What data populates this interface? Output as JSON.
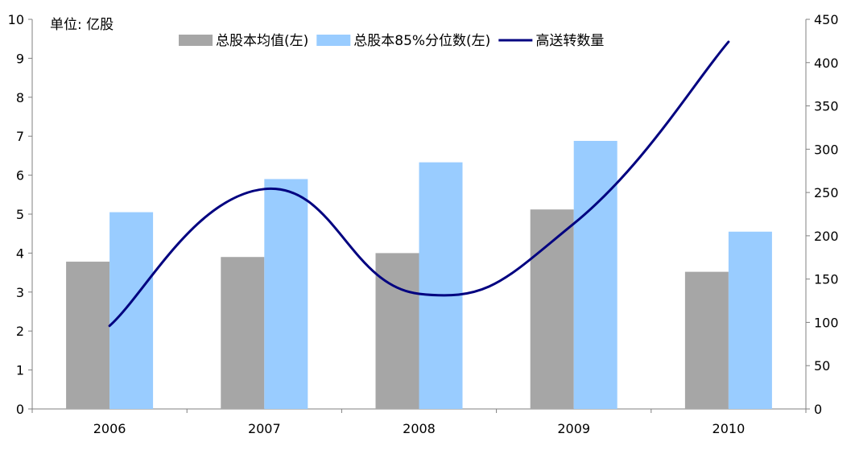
{
  "chart_data": {
    "type": "bar",
    "unit_label": "单位: 亿股",
    "categories": [
      "2006",
      "2007",
      "2008",
      "2009",
      "2010"
    ],
    "series": [
      {
        "name": "总股本均值(左)",
        "type": "bar",
        "axis": "left",
        "color": "#a6a6a6",
        "values": [
          3.78,
          3.9,
          4.0,
          5.12,
          3.52
        ]
      },
      {
        "name": "总股本85%分位数(左)",
        "type": "bar",
        "axis": "left",
        "color": "#99ccff",
        "values": [
          5.05,
          5.9,
          6.33,
          6.88,
          4.55
        ]
      },
      {
        "name": "高送转数量",
        "type": "line",
        "axis": "right",
        "color": "#000080",
        "values": [
          96,
          254,
          133,
          214,
          424
        ]
      }
    ],
    "y_left": {
      "min": 0,
      "max": 10,
      "step": 1,
      "ticks": [
        "0",
        "1",
        "2",
        "3",
        "4",
        "5",
        "6",
        "7",
        "8",
        "9",
        "10"
      ]
    },
    "y_right": {
      "min": 0,
      "max": 450,
      "step": 50,
      "ticks": [
        "0",
        "50",
        "100",
        "150",
        "200",
        "250",
        "300",
        "350",
        "400",
        "450"
      ]
    },
    "legend_position": "top",
    "grid": false
  }
}
